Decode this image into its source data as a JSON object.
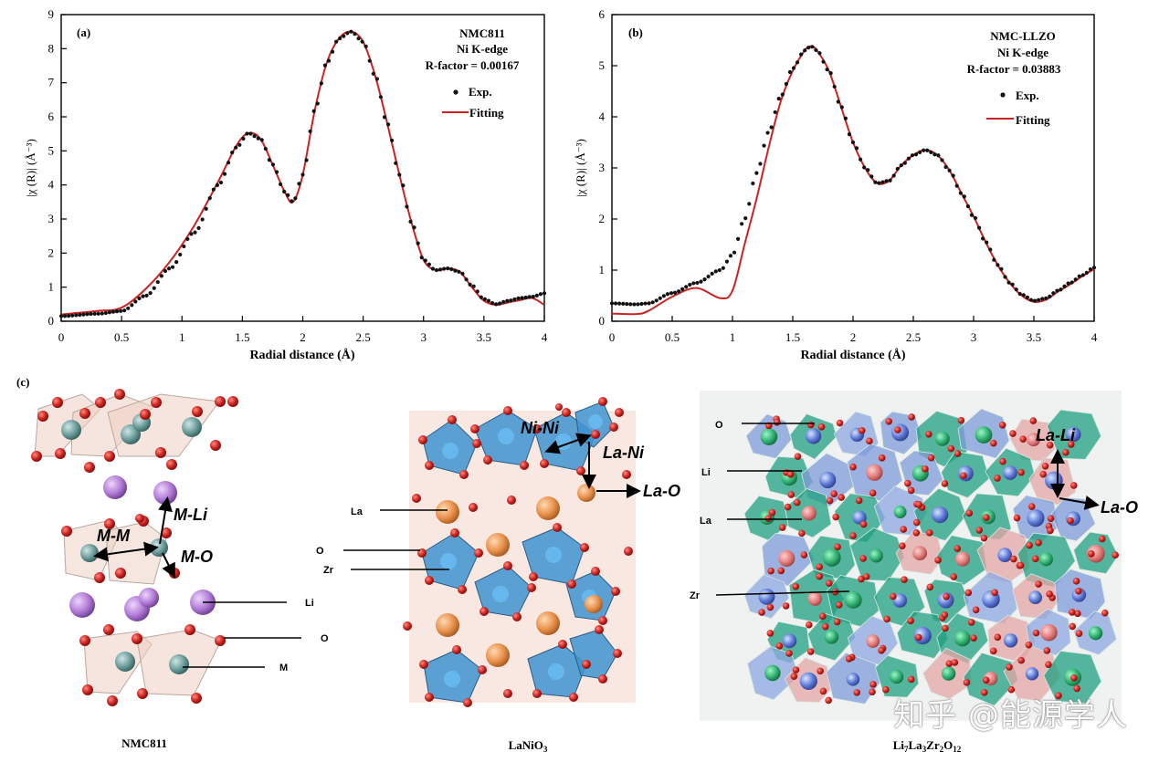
{
  "chart_data": [
    {
      "type": "line",
      "panel_label": "(a)",
      "title": "NMC811",
      "subtitle": "Ni K-edge",
      "r_factor": "R-factor = 0.00167",
      "xlabel": "Radial distance (Å)",
      "ylabel": "|χ (R)| (Å⁻³)",
      "xlim": [
        0,
        4
      ],
      "ylim": [
        0,
        9
      ],
      "xticks": [
        "0",
        "0.5",
        "1",
        "1.5",
        "2",
        "2.5",
        "3",
        "3.5",
        "4"
      ],
      "yticks": [
        "0",
        "1",
        "2",
        "3",
        "4",
        "5",
        "6",
        "7",
        "8",
        "9"
      ],
      "legend": [
        "Exp.",
        "Fitting"
      ],
      "series": [
        {
          "name": "Exp.",
          "style": "dots",
          "color": "#111111",
          "x": [
            0,
            0.3,
            0.5,
            0.7,
            0.9,
            1.1,
            1.3,
            1.45,
            1.55,
            1.65,
            1.75,
            1.85,
            1.92,
            2.0,
            2.1,
            2.2,
            2.3,
            2.4,
            2.5,
            2.6,
            2.7,
            2.8,
            2.9,
            3.0,
            3.1,
            3.2,
            3.3,
            3.4,
            3.5,
            3.6,
            3.7,
            3.8,
            3.9,
            4.0
          ],
          "y": [
            0.15,
            0.22,
            0.3,
            0.75,
            1.55,
            2.6,
            4.0,
            5.1,
            5.52,
            5.35,
            4.6,
            3.8,
            3.5,
            4.3,
            6.2,
            7.6,
            8.3,
            8.5,
            8.2,
            7.2,
            5.8,
            4.3,
            2.9,
            1.8,
            1.5,
            1.55,
            1.45,
            1.05,
            0.65,
            0.5,
            0.6,
            0.68,
            0.72,
            0.82
          ]
        },
        {
          "name": "Fitting",
          "style": "line",
          "color": "#cc2222",
          "x": [
            0,
            0.3,
            0.5,
            0.7,
            0.9,
            1.1,
            1.3,
            1.45,
            1.55,
            1.65,
            1.75,
            1.85,
            1.92,
            2.0,
            2.1,
            2.2,
            2.3,
            2.4,
            2.5,
            2.6,
            2.7,
            2.8,
            2.9,
            3.0,
            3.1,
            3.2,
            3.3,
            3.4,
            3.5,
            3.6,
            3.7,
            3.8,
            3.9,
            4.0
          ],
          "y": [
            0.2,
            0.3,
            0.4,
            0.95,
            1.75,
            2.8,
            4.1,
            5.15,
            5.52,
            5.35,
            4.6,
            3.8,
            3.5,
            4.3,
            6.2,
            7.6,
            8.3,
            8.5,
            8.2,
            7.2,
            5.8,
            4.3,
            2.9,
            1.8,
            1.5,
            1.55,
            1.45,
            1.0,
            0.6,
            0.48,
            0.55,
            0.62,
            0.68,
            0.48
          ]
        }
      ]
    },
    {
      "type": "line",
      "panel_label": "(b)",
      "title": "NMC-LLZO",
      "subtitle": "Ni K-edge",
      "r_factor": "R-factor = 0.03883",
      "xlabel": "Radial distance (Å)",
      "ylabel": "|χ (R)| (Å⁻³)",
      "xlim": [
        0,
        4
      ],
      "ylim": [
        0,
        6
      ],
      "xticks": [
        "0",
        "0.5",
        "1",
        "1.5",
        "2",
        "2.5",
        "3",
        "3.5",
        "4"
      ],
      "yticks": [
        "0",
        "1",
        "2",
        "3",
        "4",
        "5",
        "6"
      ],
      "legend": [
        "Exp.",
        "Fitting"
      ],
      "series": [
        {
          "name": "Exp.",
          "style": "dots",
          "color": "#111111",
          "x": [
            0,
            0.2,
            0.3,
            0.5,
            0.7,
            0.9,
            1.0,
            1.1,
            1.2,
            1.3,
            1.4,
            1.5,
            1.6,
            1.65,
            1.7,
            1.8,
            1.9,
            2.0,
            2.1,
            2.2,
            2.3,
            2.4,
            2.5,
            2.6,
            2.7,
            2.8,
            2.9,
            3.0,
            3.1,
            3.2,
            3.3,
            3.4,
            3.5,
            3.6,
            3.7,
            3.8,
            3.9,
            4.0
          ],
          "y": [
            0.35,
            0.33,
            0.35,
            0.55,
            0.75,
            1.0,
            1.3,
            2.0,
            2.9,
            3.7,
            4.4,
            4.95,
            5.3,
            5.38,
            5.3,
            4.9,
            4.2,
            3.5,
            3.0,
            2.7,
            2.75,
            3.05,
            3.25,
            3.35,
            3.25,
            2.95,
            2.5,
            2.05,
            1.55,
            1.1,
            0.75,
            0.52,
            0.4,
            0.45,
            0.6,
            0.75,
            0.9,
            1.05
          ]
        },
        {
          "name": "Fitting",
          "style": "line",
          "color": "#cc2222",
          "x": [
            0,
            0.2,
            0.3,
            0.5,
            0.7,
            0.9,
            1.0,
            1.1,
            1.2,
            1.3,
            1.4,
            1.5,
            1.6,
            1.65,
            1.7,
            1.8,
            1.9,
            2.0,
            2.1,
            2.2,
            2.3,
            2.4,
            2.5,
            2.6,
            2.7,
            2.8,
            2.9,
            3.0,
            3.1,
            3.2,
            3.3,
            3.4,
            3.5,
            3.6,
            3.7,
            3.8,
            3.9,
            4.0
          ],
          "y": [
            0.15,
            0.14,
            0.2,
            0.48,
            0.65,
            0.45,
            0.6,
            1.5,
            2.4,
            3.4,
            4.3,
            4.9,
            5.3,
            5.38,
            5.3,
            4.9,
            4.2,
            3.5,
            3.0,
            2.7,
            2.75,
            3.05,
            3.25,
            3.35,
            3.25,
            2.95,
            2.5,
            2.05,
            1.55,
            1.1,
            0.75,
            0.5,
            0.38,
            0.42,
            0.58,
            0.72,
            0.88,
            1.02
          ]
        }
      ]
    }
  ],
  "panel_c": {
    "label": "(c)",
    "nmc811": {
      "caption": "NMC811",
      "bond_mm": "M-M",
      "bond_mli": "M-Li",
      "bond_mo": "M-O",
      "callout_li": "Li",
      "callout_o": "O",
      "callout_m": "M"
    },
    "lanio3": {
      "caption_main": "LaNiO",
      "caption_sub": "3",
      "bond_nini": "Ni-Ni",
      "bond_lani": "La-Ni",
      "bond_lao": "La-O",
      "callout_la": "La",
      "callout_o": "O",
      "callout_zr": "Zr"
    },
    "llzo": {
      "caption_parts": [
        "Li",
        "7",
        "La",
        "3",
        "Zr",
        "2",
        "O",
        "12"
      ],
      "bond_lali": "La-Li",
      "bond_lao": "La-O",
      "callout_o": "O",
      "callout_li": "Li",
      "callout_la": "La",
      "callout_zr": "Zr"
    }
  },
  "watermark": "知乎 @能源学人",
  "colors": {
    "oxygen": "#c8201c",
    "metal": "#6a9c9a",
    "lithium": "#b07ad6",
    "lanthanum": "#e8904a",
    "zirconium_octahedra": "#3f93d0",
    "green_polyhedra": "#1fa080",
    "fit_line": "#cc2222"
  }
}
